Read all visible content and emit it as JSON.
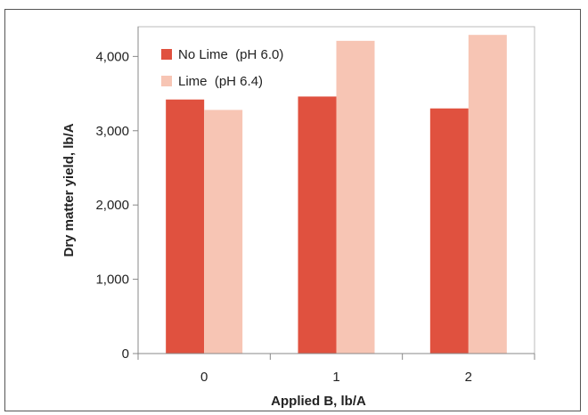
{
  "chart_data": {
    "type": "bar",
    "categories": [
      "0",
      "1",
      "2"
    ],
    "series": [
      {
        "name": "No Lime  (pH 6.0)",
        "values": [
          3420,
          3460,
          3300
        ],
        "color": "#e0513f"
      },
      {
        "name": "Lime  (pH 6.4)",
        "values": [
          3280,
          4210,
          4290
        ],
        "color": "#f7c5b4"
      }
    ],
    "xlabel": "Applied B, lb/A",
    "ylabel": "Dry matter yield, lb/A",
    "ylim": [
      0,
      4400
    ],
    "yticks": [
      0,
      1000,
      2000,
      3000,
      4000
    ],
    "ytick_labels": [
      "0",
      "1,000",
      "2,000",
      "3,000",
      "4,000"
    ],
    "grid": false,
    "legend_position": "top-left"
  }
}
